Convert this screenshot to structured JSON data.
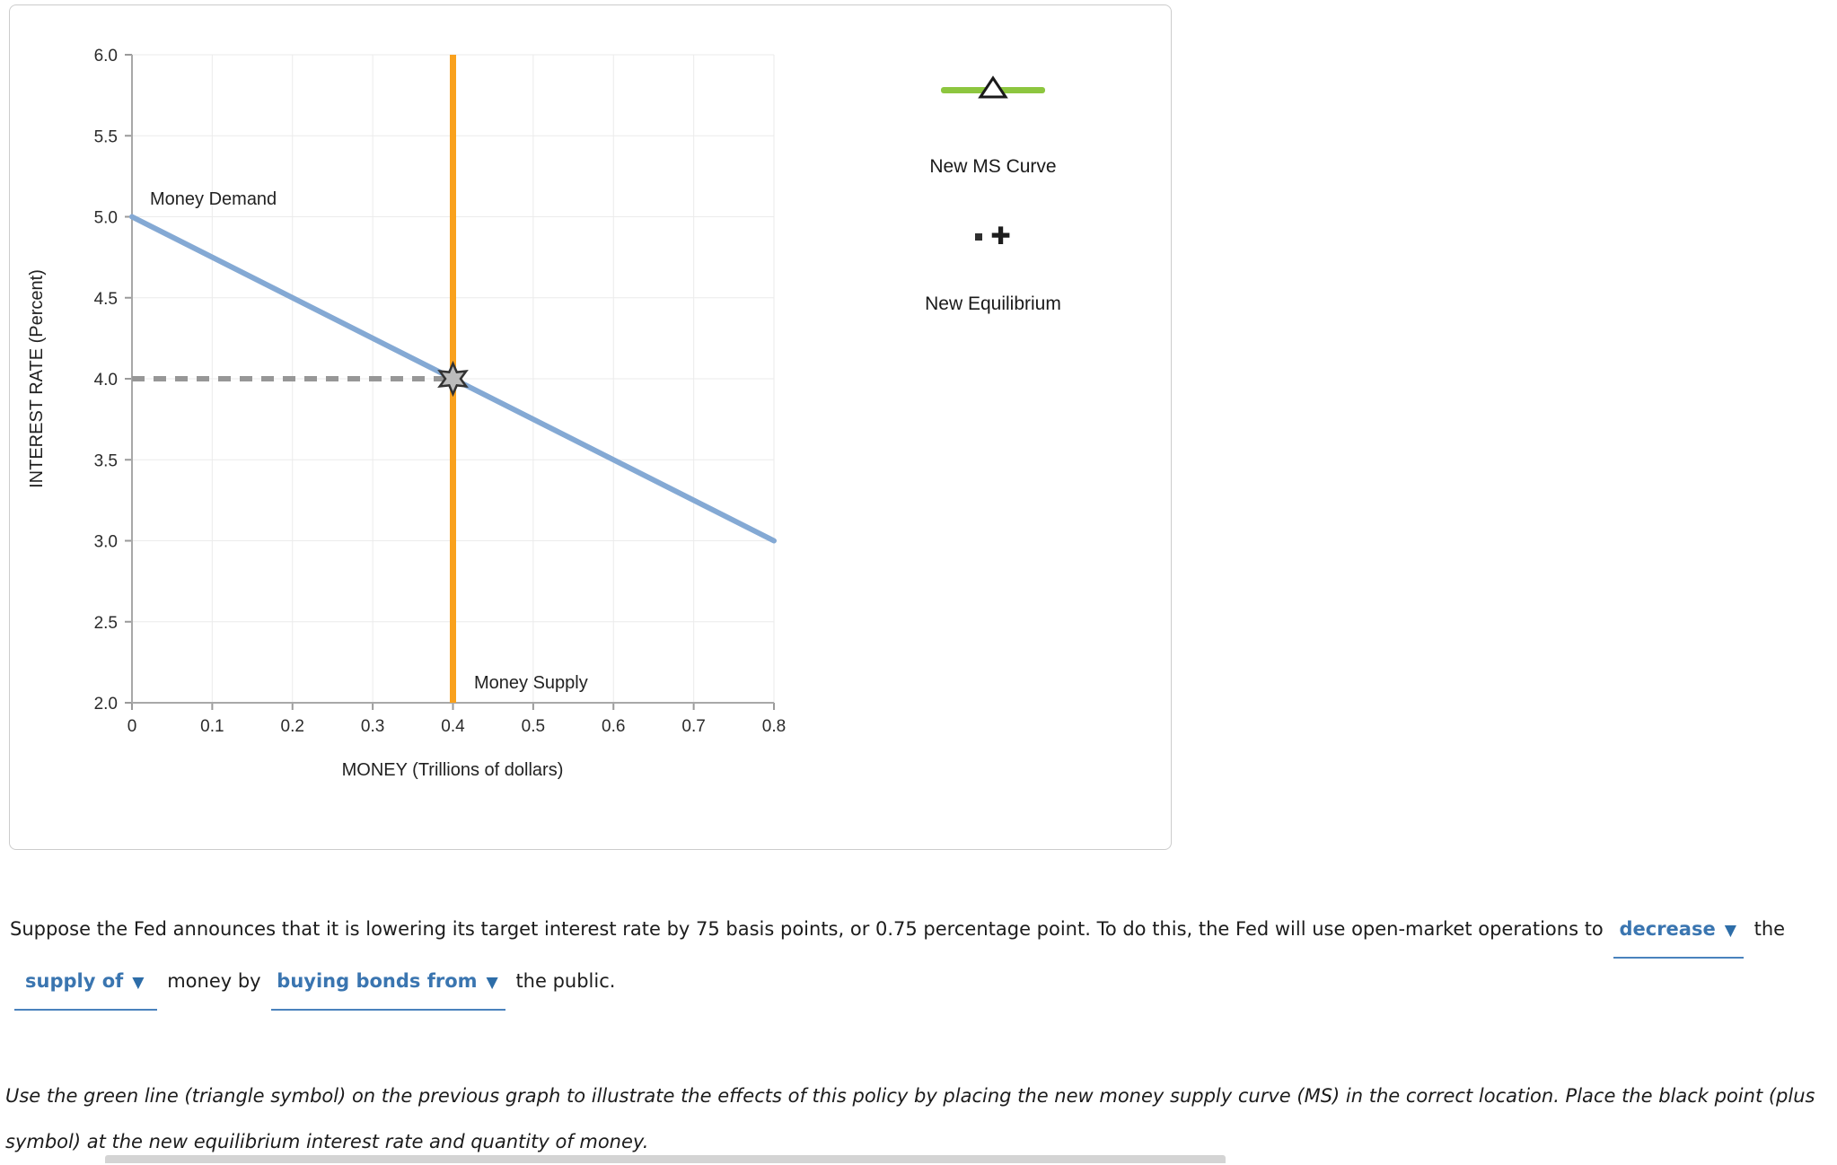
{
  "chart_data": {
    "type": "line",
    "title": "",
    "xlabel": "MONEY (Trillions of dollars)",
    "ylabel": "INTEREST RATE (Percent)",
    "xlim": [
      0,
      0.8
    ],
    "ylim": [
      2.0,
      6.0
    ],
    "grid": true,
    "x_tick_values": [
      0,
      0.1,
      0.2,
      0.3,
      0.4,
      0.5,
      0.6,
      0.7,
      0.8
    ],
    "x_tick_labels": [
      "0",
      "0.1",
      "0.2",
      "0.3",
      "0.4",
      "0.5",
      "0.6",
      "0.7",
      "0.8"
    ],
    "y_tick_values": [
      2.0,
      2.5,
      3.0,
      3.5,
      4.0,
      4.5,
      5.0,
      5.5,
      6.0
    ],
    "y_tick_labels": [
      "2.0",
      "2.5",
      "3.0",
      "3.5",
      "4.0",
      "4.5",
      "5.0",
      "5.5",
      "6.0"
    ],
    "series": [
      {
        "name": "Money Demand",
        "type": "line",
        "color": "#84a9d4",
        "points": [
          [
            0,
            5.0
          ],
          [
            0.8,
            3.0
          ]
        ]
      },
      {
        "name": "Money Supply",
        "type": "vline",
        "color": "#f9a11d",
        "x": 0.4
      }
    ],
    "equilibrium": {
      "x": 0.4,
      "y": 4.0,
      "marker": "gray-star"
    },
    "dashed_guide": {
      "y": 4.0,
      "x_from": 0,
      "x_to": 0.4,
      "color": "#979797"
    }
  },
  "legend": {
    "new_ms_curve": {
      "label": "New MS Curve",
      "symbol": "green-line-with-triangle",
      "color": "#8dc63f"
    },
    "new_equilibrium": {
      "label": "New Equilibrium",
      "symbol": "black-plus",
      "color": "#1d1d1d"
    }
  },
  "question": {
    "p1_part1": "Suppose the Fed announces that it is lowering its target interest rate by 75 basis points, or 0.75 percentage point. To do this, the Fed will use open-market operations to",
    "dropdown1": "decrease",
    "p1_part2": "the",
    "dropdown2": "supply of",
    "p1_part3": "money by",
    "dropdown3": "buying bonds from",
    "p1_part4": "the public.",
    "instruction": "Use the green line (triangle symbol) on the previous graph to illustrate the effects of this policy by placing the new money supply curve (MS) in the correct location. Place the black point (plus symbol) at the new equilibrium interest rate and quantity of money."
  },
  "colors": {
    "demand_blue": "#84a9d4",
    "supply_orange": "#f9a11d",
    "legend_green": "#8dc63f",
    "dropdown_blue": "#3a75b0",
    "dashed_gray": "#979797"
  }
}
